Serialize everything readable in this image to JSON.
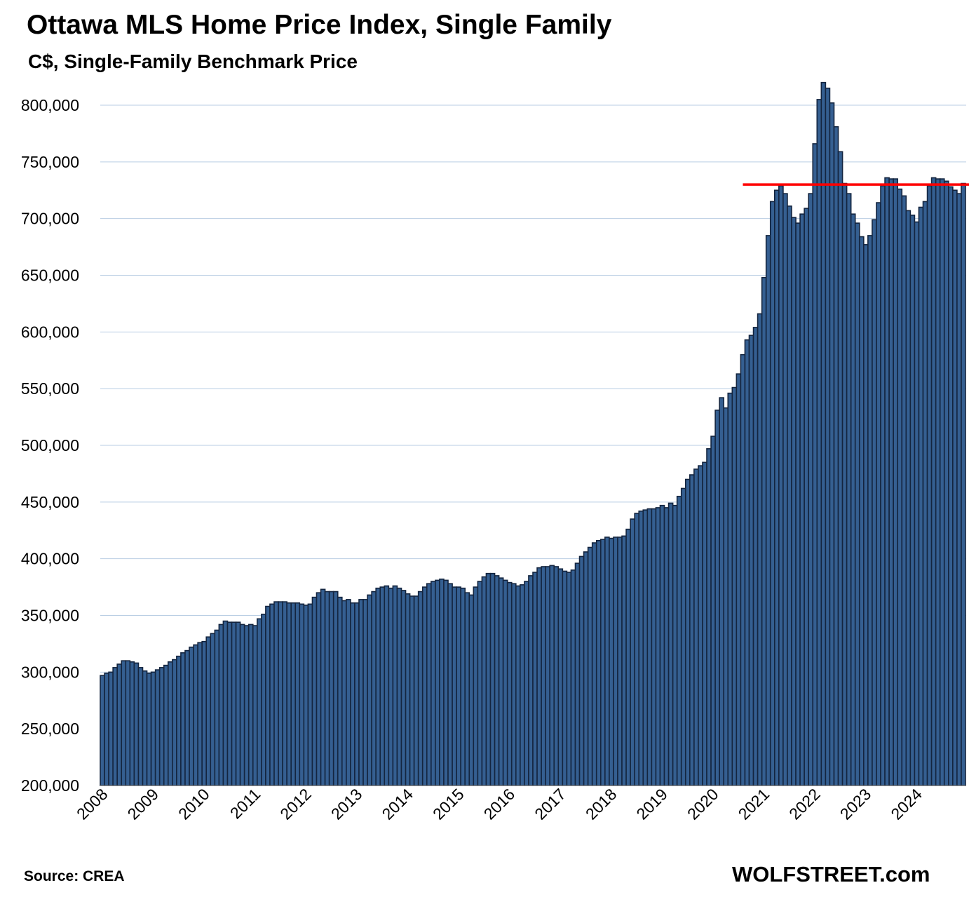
{
  "chart_data": {
    "type": "bar",
    "title": "Ottawa MLS Home Price Index, Single Family",
    "subtitle": "C$, Single-Family Benchmark Price",
    "xlabel": "",
    "ylabel": "",
    "ylim": [
      200000,
      820000
    ],
    "yticks": [
      200000,
      250000,
      300000,
      350000,
      400000,
      450000,
      500000,
      550000,
      600000,
      650000,
      700000,
      750000,
      800000
    ],
    "ytick_labels": [
      "200,000",
      "250,000",
      "300,000",
      "350,000",
      "400,000",
      "450,000",
      "500,000",
      "550,000",
      "600,000",
      "650,000",
      "700,000",
      "750,000",
      "800,000"
    ],
    "xtick_labels": [
      "2008",
      "2009",
      "2010",
      "2011",
      "2012",
      "2013",
      "2014",
      "2015",
      "2016",
      "2017",
      "2018",
      "2019",
      "2020",
      "2021",
      "2022",
      "2023",
      "2024"
    ],
    "grid": true,
    "frequency": "monthly, Jan 2008 - Dec 2024",
    "bar_color": "#355f91",
    "bar_edge_color": "#14253f",
    "reference_line": {
      "value": 730000,
      "start_index": 153,
      "color": "#ff0000"
    },
    "values": [
      297000,
      299000,
      300000,
      304000,
      307000,
      310000,
      310000,
      309000,
      308000,
      304000,
      301000,
      299000,
      300000,
      302000,
      304000,
      306000,
      309000,
      311000,
      314000,
      317000,
      319000,
      322000,
      324000,
      326000,
      327000,
      331000,
      334000,
      337000,
      342000,
      345000,
      344000,
      344000,
      344000,
      342000,
      341000,
      342000,
      341000,
      347000,
      351000,
      358000,
      360000,
      362000,
      362000,
      362000,
      361000,
      361000,
      361000,
      360000,
      359000,
      360000,
      366000,
      370000,
      373000,
      371000,
      371000,
      371000,
      366000,
      363000,
      364000,
      361000,
      361000,
      364000,
      364000,
      368000,
      371000,
      374000,
      375000,
      376000,
      374000,
      376000,
      374000,
      372000,
      369000,
      367000,
      367000,
      371000,
      375000,
      378000,
      380000,
      381000,
      382000,
      381000,
      378000,
      375000,
      375000,
      374000,
      370000,
      368000,
      375000,
      380000,
      384000,
      387000,
      387000,
      385000,
      383000,
      381000,
      379000,
      378000,
      376000,
      377000,
      380000,
      385000,
      388000,
      392000,
      393000,
      393000,
      394000,
      393000,
      391000,
      389000,
      388000,
      390000,
      396000,
      402000,
      406000,
      410000,
      414000,
      416000,
      417000,
      419000,
      418000,
      419000,
      419000,
      420000,
      426000,
      435000,
      440000,
      442000,
      443000,
      444000,
      444000,
      445000,
      447000,
      445000,
      449000,
      447000,
      455000,
      462000,
      470000,
      474000,
      479000,
      482000,
      485000,
      497000,
      508000,
      531000,
      542000,
      533000,
      546000,
      551000,
      563000,
      580000,
      593000,
      597000,
      604000,
      616000,
      648000,
      685000,
      715000,
      725000,
      729000,
      722000,
      711000,
      701000,
      696000,
      704000,
      709000,
      722000,
      766000,
      805000,
      820000,
      815000,
      802000,
      781000,
      759000,
      731000,
      722000,
      704000,
      696000,
      684000,
      677000,
      685000,
      699000,
      714000,
      729000,
      736000,
      735000,
      735000,
      726000,
      720000,
      707000,
      703000,
      697000,
      710000,
      715000,
      729000,
      736000,
      735000,
      735000,
      733000,
      728000,
      725000,
      722000,
      731000
    ],
    "source": "Source: CREA",
    "brand": "WOLFSTREET.com"
  }
}
